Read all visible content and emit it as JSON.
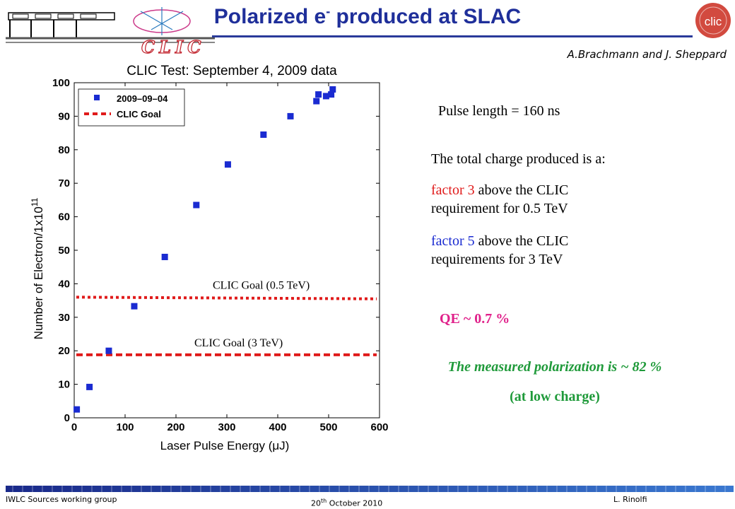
{
  "slide": {
    "title_main": "Polarized e",
    "title_sup": "-",
    "title_end": " produced at SLAC",
    "authors": "A.Brachmann and  J. Sheppard",
    "logo_text": "CLIC",
    "badge_text": "clic"
  },
  "notes": {
    "pulse": "Pulse length = 160 ns",
    "total": "The total charge produced is a:",
    "factor3_head": "factor 3",
    "factor3_tail": " above the CLIC requirement for 0.5 TeV",
    "factor5_head": "factor 5",
    "factor5_tail": " above the CLIC requirements for 3 TeV",
    "qe": "QE ~  0.7 %",
    "polarization": "The measured polarization is ~ 82 %",
    "polarization_note": "(at low charge)"
  },
  "footer": {
    "left": "IWLC  Sources working group",
    "date_day": "20",
    "date_sup": "th",
    "date_rest": " October 2010",
    "right": "L. Rinolfi"
  },
  "colors": {
    "title": "#1f2f9a",
    "points": "#1a2bd1",
    "goal": "#e01b1b",
    "highlight_red": "#e01b1b",
    "highlight_blue": "#1a2bd1",
    "qe": "#e0208a",
    "polarization": "#1f9a3a"
  },
  "chart_data": {
    "type": "scatter",
    "title": "CLIC Test: September 4, 2009 data",
    "xlabel": "Laser Pulse Energy (μJ)",
    "ylabel": "Number of Electron/1x10",
    "ylabel_sup": "11",
    "xlim": [
      0,
      600
    ],
    "ylim": [
      0,
      100
    ],
    "xticks": [
      0,
      100,
      200,
      300,
      400,
      500,
      600
    ],
    "yticks": [
      0,
      10,
      20,
      30,
      40,
      50,
      60,
      70,
      80,
      90,
      100
    ],
    "legend_position": "top-left",
    "series": [
      {
        "name": "2009–09–04",
        "x": [
          5,
          30,
          68,
          118,
          178,
          240,
          302,
          372,
          425,
          476,
          480,
          495,
          505,
          508
        ],
        "y": [
          2.5,
          9.2,
          20,
          33.3,
          48,
          63.5,
          75.6,
          84.5,
          90,
          94.5,
          96.5,
          96,
          96.5,
          98
        ]
      }
    ],
    "legend_goal": "CLIC Goal",
    "goal_lines": [
      {
        "label": "CLIC Goal (0.5 TeV)",
        "y_start": 36,
        "y_end": 35.5
      },
      {
        "label": "CLIC Goal (3 TeV)",
        "y_start": 18.8,
        "y_end": 18.8
      }
    ]
  }
}
